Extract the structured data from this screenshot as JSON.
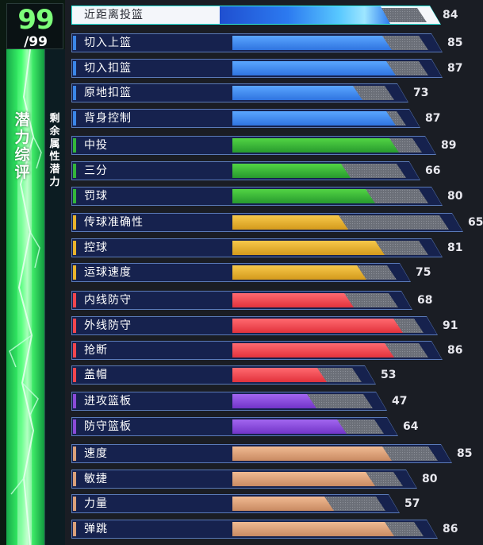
{
  "header": {
    "score": "99",
    "score_max": "/99",
    "potential_title": "潜力综评",
    "remaining_label": "剩余属性潜力"
  },
  "colors": {
    "blue": "#3a86e8",
    "green": "#33b53a",
    "yellow": "#e8b22c",
    "red": "#f0464e",
    "purple": "#8a4ad8",
    "tan": "#d9a07a",
    "highlight": "#2ef2e6"
  },
  "attributes": [
    {
      "label": "近距离投篮",
      "value": "84",
      "level": 0.84,
      "color": "blue",
      "selected": true
    },
    {
      "label": "切入上篮",
      "value": "85",
      "level": 0.85,
      "color": "blue"
    },
    {
      "label": "切入扣篮",
      "value": "87",
      "level": 0.87,
      "color": "blue"
    },
    {
      "label": "原地扣篮",
      "value": "73",
      "level": 0.73,
      "color": "blue"
    },
    {
      "label": "背身控制",
      "value": "87",
      "level": 0.87,
      "color": "blue"
    },
    {
      "label": "中投",
      "value": "89",
      "level": 0.89,
      "color": "green"
    },
    {
      "label": "三分",
      "value": "66",
      "level": 0.66,
      "color": "green"
    },
    {
      "label": "罚球",
      "value": "80",
      "level": 0.8,
      "color": "green"
    },
    {
      "label": "传球准确性",
      "value": "65",
      "level": 0.65,
      "color": "yellow"
    },
    {
      "label": "控球",
      "value": "81",
      "level": 0.81,
      "color": "yellow"
    },
    {
      "label": "运球速度",
      "value": "75",
      "level": 0.75,
      "color": "yellow"
    },
    {
      "label": "内线防守",
      "value": "68",
      "level": 0.68,
      "color": "red"
    },
    {
      "label": "外线防守",
      "value": "91",
      "level": 0.91,
      "color": "red"
    },
    {
      "label": "抢断",
      "value": "86",
      "level": 0.86,
      "color": "red"
    },
    {
      "label": "盖帽",
      "value": "53",
      "level": 0.53,
      "color": "red"
    },
    {
      "label": "进攻篮板",
      "value": "47",
      "level": 0.47,
      "color": "purple"
    },
    {
      "label": "防守篮板",
      "value": "64",
      "level": 0.64,
      "color": "purple"
    },
    {
      "label": "速度",
      "value": "85",
      "level": 0.85,
      "color": "tan"
    },
    {
      "label": "敏捷",
      "value": "80",
      "level": 0.8,
      "color": "tan"
    },
    {
      "label": "力量",
      "value": "57",
      "level": 0.57,
      "color": "tan"
    },
    {
      "label": "弹跳",
      "value": "86",
      "level": 0.86,
      "color": "tan"
    }
  ]
}
